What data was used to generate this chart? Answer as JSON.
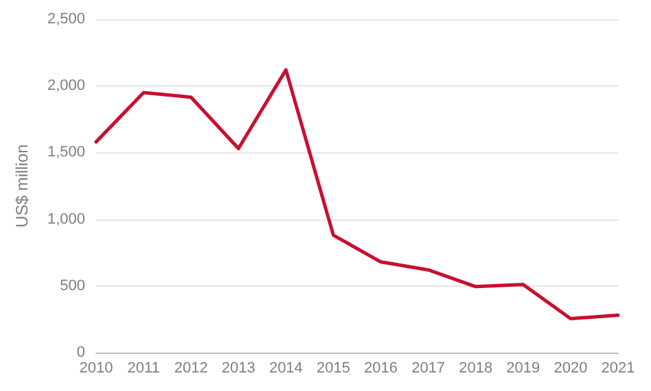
{
  "chart_data": {
    "type": "line",
    "ylabel": "US$ million",
    "x": [
      2010,
      2011,
      2012,
      2013,
      2014,
      2015,
      2016,
      2017,
      2018,
      2019,
      2020,
      2021
    ],
    "series": [
      {
        "color": "#c8102e",
        "values": [
          1580,
          1950,
          1915,
          1530,
          2120,
          880,
          680,
          620,
          495,
          510,
          255,
          280
        ]
      }
    ],
    "xlim": [
      2010,
      2021
    ],
    "xticks": [
      2010,
      2011,
      2012,
      2013,
      2014,
      2015,
      2016,
      2017,
      2018,
      2019,
      2020,
      2021
    ],
    "ylim": [
      0,
      2500
    ],
    "yticks": [
      {
        "value": 0,
        "label": "0"
      },
      {
        "value": 500,
        "label": "500"
      },
      {
        "value": 1000,
        "label": "1,000"
      },
      {
        "value": 1500,
        "label": "1,500"
      },
      {
        "value": 2000,
        "label": "2,000"
      },
      {
        "value": 2500,
        "label": "2,500"
      }
    ],
    "grid": "y",
    "marker": "none",
    "line_style": "solid"
  }
}
